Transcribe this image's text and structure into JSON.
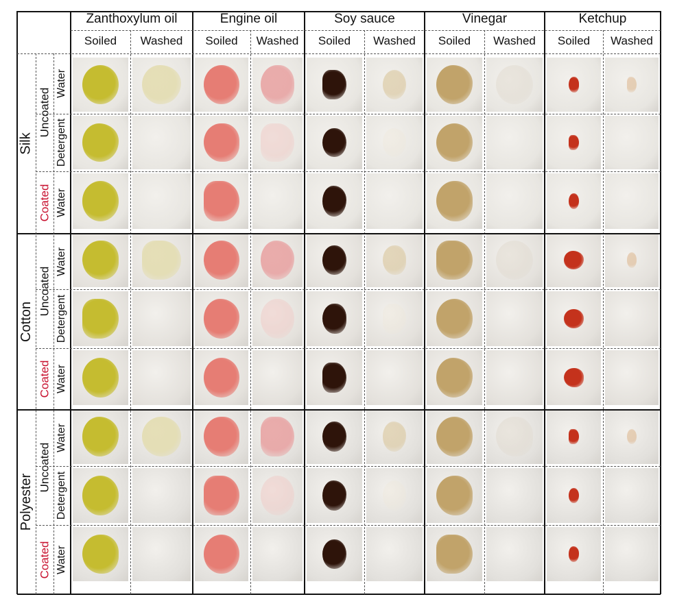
{
  "figure": {
    "stains": [
      {
        "name": "Zanthoxylum oil",
        "color": "#c9bf2e"
      },
      {
        "name": "Engine oil",
        "color": "#e98a7e"
      },
      {
        "name": "Soy sauce",
        "color": "#3a1a0e"
      },
      {
        "name": "Vinegar",
        "color": "#c9b07a"
      },
      {
        "name": "Ketchup",
        "color": "#c4321c"
      }
    ],
    "conditions": [
      "Soiled",
      "Washed"
    ],
    "fabrics": [
      {
        "name": "Silk",
        "treatments": [
          {
            "coating": "Uncoated",
            "coating_color": "#111111",
            "washes": [
              "Water",
              "Detergent"
            ]
          },
          {
            "coating": "Coated",
            "coating_color": "#c8102e",
            "washes": [
              "Water"
            ]
          }
        ]
      },
      {
        "name": "Cotton",
        "treatments": [
          {
            "coating": "Uncoated",
            "coating_color": "#111111",
            "washes": [
              "Water",
              "Detergent"
            ]
          },
          {
            "coating": "Coated",
            "coating_color": "#c8102e",
            "washes": [
              "Water"
            ]
          }
        ]
      },
      {
        "name": "Polyester",
        "treatments": [
          {
            "coating": "Uncoated",
            "coating_color": "#111111",
            "washes": [
              "Water",
              "Detergent"
            ]
          },
          {
            "coating": "Coated",
            "coating_color": "#c8102e",
            "washes": [
              "Water"
            ]
          }
        ]
      }
    ]
  }
}
